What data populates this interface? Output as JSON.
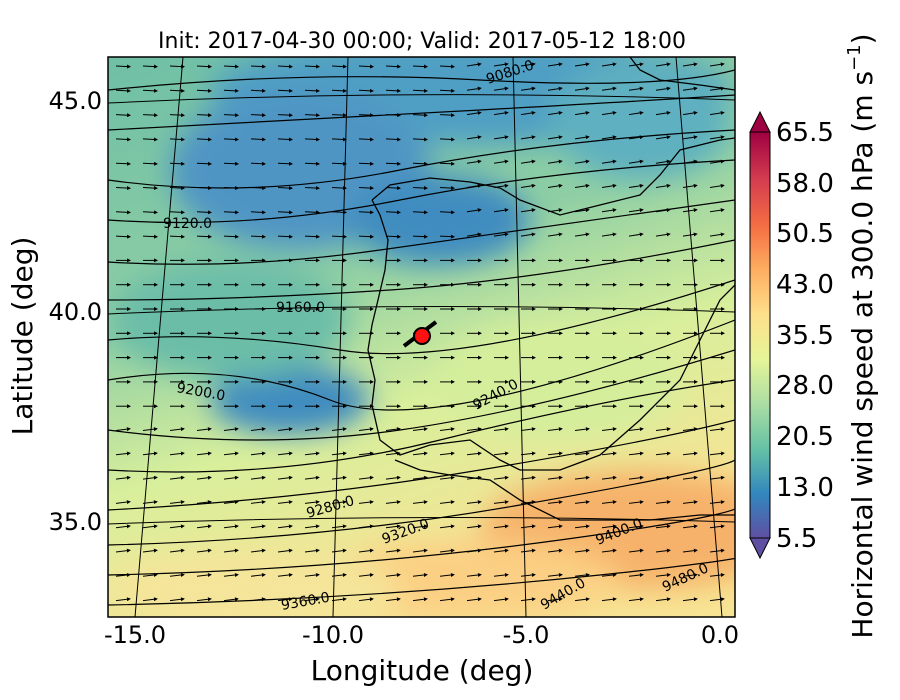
{
  "chart_data": {
    "type": "map-contour",
    "title": "Init: 2017-04-30 00:00; Valid: 2017-05-12 18:00",
    "xlabel": "Longitude (deg)",
    "ylabel": "Latitude (deg)",
    "x_ticks": [
      "-15.0",
      "-10.0",
      "-5.0",
      "0.0"
    ],
    "y_ticks": [
      "45.0",
      "40.0",
      "35.0"
    ],
    "xlim": [
      -16.0,
      0.2
    ],
    "ylim": [
      32.8,
      46.0
    ],
    "colorbar": {
      "label": "Horizontal wind speed at 300.0 hPa (m s",
      "label_superscript": "−1",
      "label_suffix": ")",
      "ticks": [
        "65.5",
        "58.0",
        "50.5",
        "43.0",
        "35.5",
        "28.0",
        "20.5",
        "13.0",
        "5.5"
      ],
      "range": [
        5.5,
        65.5
      ],
      "extend": "both",
      "colormap": [
        "#5e4fa2",
        "#3288bd",
        "#66c2a5",
        "#abdda4",
        "#e6f598",
        "#fee08b",
        "#fdae61",
        "#f46d43",
        "#d53e4f",
        "#9e0142"
      ]
    },
    "contour_labels": [
      "9080.0",
      "9120.0",
      "9160.0",
      "9200.0",
      "9240.0",
      "9280.0",
      "9320.0",
      "9360.0",
      "9400.0",
      "9440.0",
      "9480.0"
    ],
    "marker": {
      "lon": -7.6,
      "lat": 39.3,
      "color": "#ff0000"
    },
    "wind_vectors": {
      "direction": "westerly"
    }
  }
}
